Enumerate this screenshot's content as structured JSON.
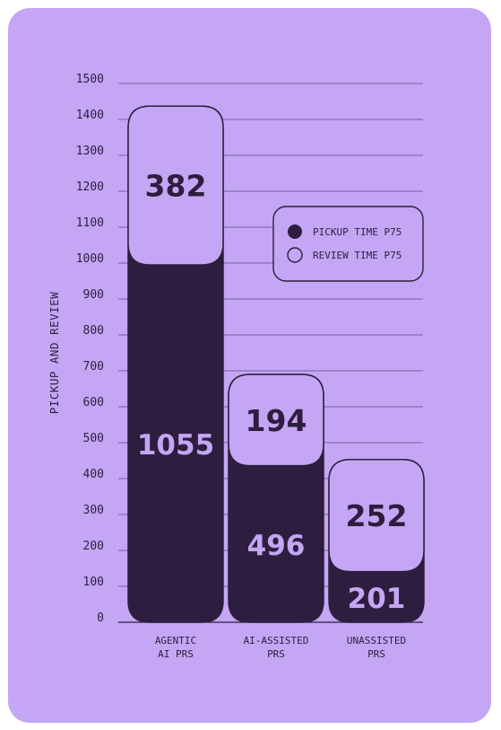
{
  "colors": {
    "card_background": "#c4a6f4",
    "dark": "#2d1e3f",
    "grid_line": "#7a5fa6"
  },
  "chart_data": {
    "type": "bar",
    "stacked": true,
    "categories": [
      [
        "AGENTIC",
        "AI PRS"
      ],
      [
        "AI-ASSISTED",
        "PRS"
      ],
      [
        "UNASSISTED",
        "PRS"
      ]
    ],
    "series": [
      {
        "name": "PICKUP TIME P75",
        "values": [
          1055,
          496,
          201
        ],
        "fill": "#2d1e3f",
        "label_color": "#c4a6f4"
      },
      {
        "name": "REVIEW TIME P75",
        "values": [
          382,
          194,
          252
        ],
        "fill": "#c4a6f4",
        "label_color": "#2d1e3f"
      }
    ],
    "ylabel": "PICKUP AND REVIEW",
    "ylim": [
      0,
      1500
    ],
    "yticks": [
      0,
      100,
      200,
      300,
      400,
      500,
      600,
      700,
      800,
      900,
      1000,
      1100,
      1200,
      1300,
      1400,
      1500
    ],
    "grid": true,
    "legend_position": "top-right"
  }
}
